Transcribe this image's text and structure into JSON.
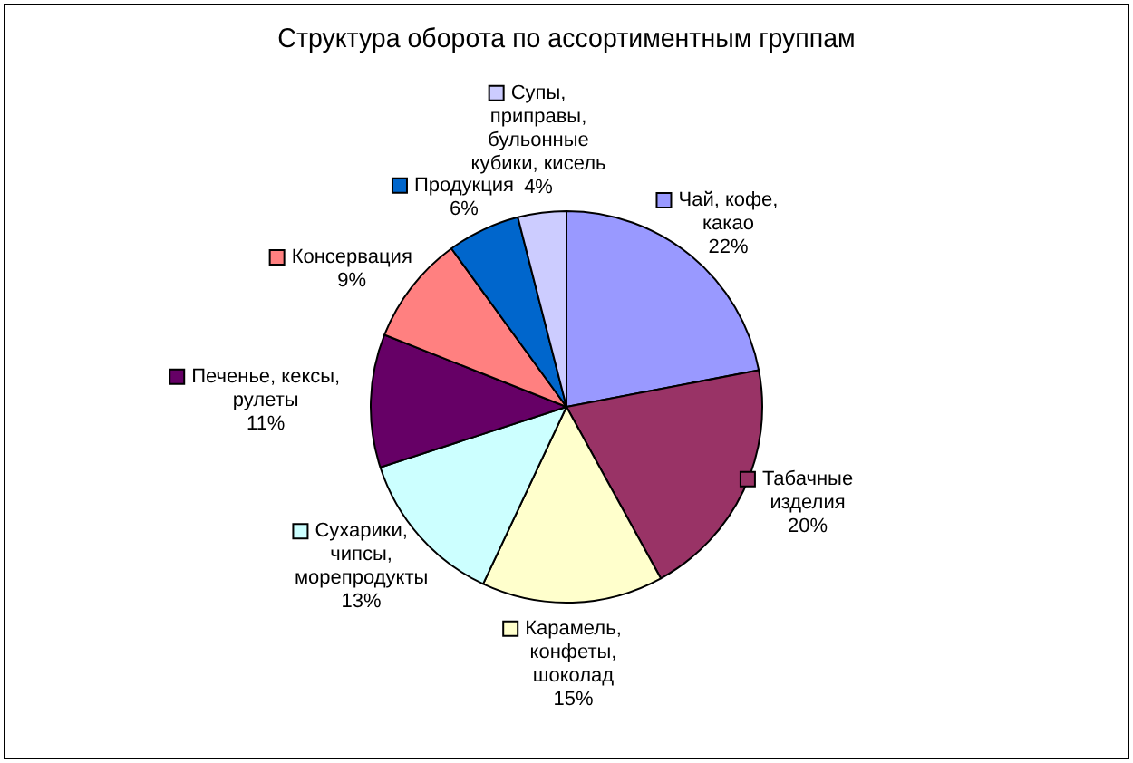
{
  "chart_data": {
    "type": "pie",
    "title": "Структура оборота по ассортиментным группам",
    "categories": [
      "Чай, кофе, какао",
      "Табачные изделия",
      "Карамель, конфеты, шоколад",
      "Сухарики, чипсы, морепродукты",
      "Печенье, кексы, рулеты",
      "Консервация",
      "Продукция",
      "Супы, приправы, бульонные кубики, кисель"
    ],
    "values": [
      22,
      20,
      15,
      13,
      11,
      9,
      6,
      4
    ],
    "colors": [
      "#9999ff",
      "#993366",
      "#ffffcc",
      "#ccffff",
      "#660066",
      "#ff8080",
      "#0066cc",
      "#ccccff"
    ],
    "value_labels": [
      "22%",
      "20%",
      "15%",
      "13%",
      "11%",
      "9%",
      "6%",
      "4%"
    ],
    "legend": true
  }
}
